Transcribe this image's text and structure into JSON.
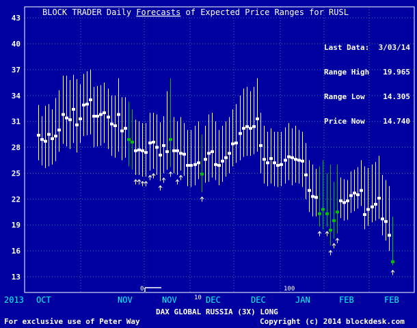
{
  "title": {
    "prefix": "BLOCK TRADER Daily ",
    "link": "Forecasts",
    "suffix": " of Expected Price Ranges for  RUSL"
  },
  "info": {
    "last_data_label": "Last Data:",
    "last_data_value": "3/03/14",
    "range_high_label": "Range High",
    "range_high_value": "19.965",
    "range_low_label": "Range Low",
    "range_low_value": "14.305",
    "price_now_label": "Price Now",
    "price_now_value": "14.740"
  },
  "footer": {
    "left": "For exclusive use of Peter Way",
    "center": "DAX GLOBAL RUSSIA (3X) LONG",
    "right": "Copyright (c) 2014 blockdesk.com"
  },
  "colors": {
    "background": "#0000a0",
    "text": "#ffffff",
    "grid": "#3a7a9a",
    "range_normal": "#ffffff",
    "range_highlight": "#00c000",
    "axis_label": "#00ffff"
  },
  "chart_data": {
    "type": "range",
    "ylim": [
      12,
      44
    ],
    "yticks": [
      13,
      16,
      19,
      22,
      25,
      28,
      31,
      34,
      37,
      40,
      43
    ],
    "year_label": "2013",
    "month_labels": [
      "OCT",
      "NOV",
      "NOV",
      "DEC",
      "DEC",
      "JAN",
      "FEB",
      "FEB"
    ],
    "aux_labels": [
      "0",
      "10",
      "100"
    ],
    "ranges": [
      {
        "low": 26.5,
        "high": 32.9,
        "price": 29.4
      },
      {
        "low": 25.9,
        "high": 31.6,
        "price": 28.9
      },
      {
        "low": 25.6,
        "high": 32.8,
        "price": 28.7
      },
      {
        "low": 25.8,
        "high": 33.0,
        "price": 29.5
      },
      {
        "low": 26.0,
        "high": 32.4,
        "price": 29.0
      },
      {
        "low": 26.4,
        "high": 33.7,
        "price": 29.3
      },
      {
        "low": 27.5,
        "high": 34.6,
        "price": 30.0
      },
      {
        "low": 28.4,
        "high": 36.3,
        "price": 31.8
      },
      {
        "low": 28.1,
        "high": 36.3,
        "price": 31.4
      },
      {
        "low": 27.8,
        "high": 35.8,
        "price": 31.2
      },
      {
        "low": 28.5,
        "high": 36.4,
        "price": 32.4
      },
      {
        "low": 27.4,
        "high": 35.9,
        "price": 30.6
      },
      {
        "low": 28.5,
        "high": 35.3,
        "price": 31.3
      },
      {
        "low": 29.3,
        "high": 36.5,
        "price": 32.9
      },
      {
        "low": 29.4,
        "high": 36.8,
        "price": 33.0
      },
      {
        "low": 29.5,
        "high": 37.0,
        "price": 33.5
      },
      {
        "low": 28.0,
        "high": 35.0,
        "price": 31.6
      },
      {
        "low": 28.1,
        "high": 35.1,
        "price": 31.6
      },
      {
        "low": 28.2,
        "high": 35.2,
        "price": 31.8
      },
      {
        "low": 28.5,
        "high": 35.5,
        "price": 32.0
      },
      {
        "low": 27.8,
        "high": 34.8,
        "price": 31.5
      },
      {
        "low": 27.0,
        "high": 34.0,
        "price": 30.7
      },
      {
        "low": 26.8,
        "high": 34.0,
        "price": 30.5
      },
      {
        "low": 27.5,
        "high": 36.0,
        "price": 31.8
      },
      {
        "low": 26.5,
        "high": 33.8,
        "price": 29.9
      },
      {
        "low": 26.8,
        "high": 33.8,
        "price": 30.2
      },
      {
        "low": 25.8,
        "high": 33.3,
        "price": 28.9,
        "green": true
      },
      {
        "low": 25.4,
        "high": 32.4,
        "price": 28.6,
        "green": true
      },
      {
        "low": 24.8,
        "high": 31.2,
        "price": 27.6
      },
      {
        "low": 24.8,
        "high": 31.0,
        "price": 27.7
      },
      {
        "low": 24.6,
        "high": 30.8,
        "price": 27.6
      },
      {
        "low": 24.6,
        "high": 30.8,
        "price": 27.4
      },
      {
        "low": 25.3,
        "high": 32.0,
        "price": 28.5
      },
      {
        "low": 25.5,
        "high": 32.0,
        "price": 28.6
      },
      {
        "low": 24.8,
        "high": 31.8,
        "price": 28.0
      },
      {
        "low": 24.1,
        "high": 30.9,
        "price": 27.1
      },
      {
        "low": 25.0,
        "high": 31.6,
        "price": 28.2
      },
      {
        "low": 25.4,
        "high": 34.5,
        "price": 27.5
      },
      {
        "low": 25.7,
        "high": 36.0,
        "price": 28.9,
        "green": true
      },
      {
        "low": 25.0,
        "high": 31.5,
        "price": 27.6
      },
      {
        "low": 24.8,
        "high": 31.0,
        "price": 27.6
      },
      {
        "low": 25.3,
        "high": 31.5,
        "price": 27.3
      },
      {
        "low": 24.7,
        "high": 30.8,
        "price": 27.2
      },
      {
        "low": 23.5,
        "high": 30.0,
        "price": 25.9
      },
      {
        "low": 23.4,
        "high": 30.0,
        "price": 25.9
      },
      {
        "low": 23.6,
        "high": 30.5,
        "price": 26.0
      },
      {
        "low": 24.3,
        "high": 31.0,
        "price": 26.2
      },
      {
        "low": 22.8,
        "high": 29.5,
        "price": 24.9,
        "green": true
      },
      {
        "low": 23.9,
        "high": 30.5,
        "price": 26.6
      },
      {
        "low": 24.0,
        "high": 31.8,
        "price": 27.3
      },
      {
        "low": 24.5,
        "high": 32.0,
        "price": 27.5
      },
      {
        "low": 24.2,
        "high": 31.0,
        "price": 26.0
      },
      {
        "low": 23.6,
        "high": 30.0,
        "price": 25.9
      },
      {
        "low": 24.0,
        "high": 30.5,
        "price": 26.4
      },
      {
        "low": 24.6,
        "high": 31.0,
        "price": 26.8
      },
      {
        "low": 25.0,
        "high": 31.5,
        "price": 27.3
      },
      {
        "low": 25.8,
        "high": 32.4,
        "price": 28.4
      },
      {
        "low": 26.2,
        "high": 33.0,
        "price": 28.5
      },
      {
        "low": 26.5,
        "high": 34.0,
        "price": 29.6
      },
      {
        "low": 26.9,
        "high": 34.8,
        "price": 30.2
      },
      {
        "low": 27.0,
        "high": 35.0,
        "price": 30.4
      },
      {
        "low": 27.0,
        "high": 34.5,
        "price": 30.2
      },
      {
        "low": 27.2,
        "high": 35.0,
        "price": 30.4
      },
      {
        "low": 27.5,
        "high": 36.0,
        "price": 31.3
      },
      {
        "low": 25.0,
        "high": 32.0,
        "price": 28.2
      },
      {
        "low": 23.8,
        "high": 30.5,
        "price": 26.6
      },
      {
        "low": 23.5,
        "high": 29.8,
        "price": 26.2
      },
      {
        "low": 23.8,
        "high": 30.2,
        "price": 26.7
      },
      {
        "low": 23.5,
        "high": 29.8,
        "price": 26.2
      },
      {
        "low": 23.4,
        "high": 29.8,
        "price": 25.9
      },
      {
        "low": 23.5,
        "high": 29.8,
        "price": 26.0
      },
      {
        "low": 23.8,
        "high": 30.3,
        "price": 26.5
      },
      {
        "low": 24.2,
        "high": 30.8,
        "price": 26.9
      },
      {
        "low": 23.6,
        "high": 30.2,
        "price": 26.8
      },
      {
        "low": 23.9,
        "high": 30.5,
        "price": 26.6
      },
      {
        "low": 23.8,
        "high": 30.0,
        "price": 26.5
      },
      {
        "low": 23.4,
        "high": 29.8,
        "price": 26.4
      },
      {
        "low": 22.0,
        "high": 28.5,
        "price": 24.8
      },
      {
        "low": 20.5,
        "high": 26.5,
        "price": 23.0
      },
      {
        "low": 20.0,
        "high": 26.0,
        "price": 22.3
      },
      {
        "low": 20.0,
        "high": 25.5,
        "price": 22.2
      },
      {
        "low": 18.8,
        "high": 25.8,
        "price": 20.3,
        "green": true
      },
      {
        "low": 18.5,
        "high": 26.5,
        "price": 20.8,
        "green": true
      },
      {
        "low": 18.8,
        "high": 25.0,
        "price": 20.3,
        "green": true
      },
      {
        "low": 16.6,
        "high": 26.0,
        "price": 18.4,
        "green": true
      },
      {
        "low": 17.4,
        "high": 24.0,
        "price": 19.5,
        "green": true
      },
      {
        "low": 18.0,
        "high": 26.0,
        "price": 20.5,
        "green": true
      },
      {
        "low": 19.8,
        "high": 24.5,
        "price": 21.8
      },
      {
        "low": 19.5,
        "high": 24.3,
        "price": 21.6
      },
      {
        "low": 19.6,
        "high": 24.2,
        "price": 21.8
      },
      {
        "low": 20.4,
        "high": 25.2,
        "price": 22.4
      },
      {
        "low": 20.6,
        "high": 25.4,
        "price": 22.7
      },
      {
        "low": 20.9,
        "high": 25.7,
        "price": 22.5
      },
      {
        "low": 21.2,
        "high": 26.5,
        "price": 23.0
      },
      {
        "low": 18.5,
        "high": 25.8,
        "price": 20.2
      },
      {
        "low": 18.9,
        "high": 25.6,
        "price": 20.8
      },
      {
        "low": 19.3,
        "high": 26.0,
        "price": 21.1
      },
      {
        "low": 19.5,
        "high": 26.3,
        "price": 21.4
      },
      {
        "low": 19.7,
        "high": 27.0,
        "price": 22.1
      },
      {
        "low": 17.8,
        "high": 24.8,
        "price": 19.7
      },
      {
        "low": 17.2,
        "high": 24.2,
        "price": 19.4
      },
      {
        "low": 16.0,
        "high": 23.5,
        "price": 17.8
      },
      {
        "low": 14.305,
        "high": 19.965,
        "price": 14.74,
        "green": true
      }
    ],
    "arrows": [
      28,
      29,
      30,
      31,
      32,
      33,
      35,
      36,
      38,
      40,
      41,
      47,
      81,
      83,
      84,
      85,
      86,
      102
    ]
  }
}
